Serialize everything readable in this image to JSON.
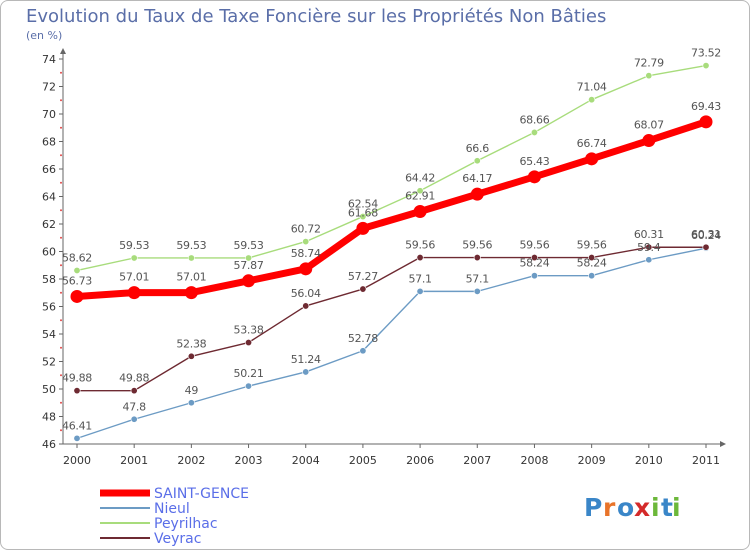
{
  "chart_data": {
    "type": "line",
    "title": "Evolution du Taux de Taxe Foncière sur les Propriétés Non Bâties",
    "subtitle": "(en %)",
    "categories": [
      "2000",
      "2001",
      "2002",
      "2003",
      "2004",
      "2005",
      "2006",
      "2007",
      "2008",
      "2009",
      "2010",
      "2011"
    ],
    "ylim": [
      46,
      74
    ],
    "yticks": [
      46,
      48,
      50,
      52,
      54,
      56,
      58,
      60,
      62,
      64,
      66,
      68,
      70,
      72,
      74
    ],
    "grid": false,
    "legend_position": "bottom-left",
    "series": [
      {
        "name": "SAINT-GENCE",
        "color": "#ff0000",
        "values": [
          56.73,
          57.01,
          57.01,
          57.87,
          58.74,
          61.68,
          62.91,
          64.17,
          65.43,
          66.74,
          68.07,
          69.43
        ],
        "labels": [
          "56.73",
          "57.01",
          "57.01",
          "57.87",
          "58.74",
          "61.68",
          "62.91",
          "64.17",
          "65.43",
          "66.74",
          "68.07",
          "69.43"
        ]
      },
      {
        "name": "Nieul",
        "color": "#6c9bc4",
        "values": [
          46.41,
          47.8,
          49,
          50.21,
          51.24,
          52.78,
          57.1,
          57.1,
          58.24,
          58.24,
          59.4,
          60.24
        ],
        "labels": [
          "46.41",
          "47.8",
          "49",
          "50.21",
          "51.24",
          "52.78",
          "57.1",
          "57.1",
          "58.24",
          "58.24",
          "59.4",
          "60.24"
        ]
      },
      {
        "name": "Peyrilhac",
        "color": "#a8dc7c",
        "values": [
          58.62,
          59.53,
          59.53,
          59.53,
          60.72,
          62.54,
          64.42,
          66.6,
          68.66,
          71.04,
          72.79,
          73.52
        ],
        "labels": [
          "58.62",
          "59.53",
          "59.53",
          "59.53",
          "60.72",
          "62.54",
          "64.42",
          "66.6",
          "68.66",
          "71.04",
          "72.79",
          "73.52"
        ]
      },
      {
        "name": "Veyrac",
        "color": "#6e2a32",
        "values": [
          49.88,
          49.88,
          52.38,
          53.38,
          56.04,
          57.27,
          59.56,
          59.56,
          59.56,
          59.56,
          60.31,
          60.31
        ],
        "labels": [
          "49.88",
          "49.88",
          "52.38",
          "53.38",
          "56.04",
          "57.27",
          "59.56",
          "59.56",
          "59.56",
          "59.56",
          "60.31",
          "60.31"
        ]
      }
    ]
  },
  "branding": {
    "logo_text": "Proxiti",
    "letters": [
      "P",
      "r",
      "o",
      "x",
      "i",
      "t",
      "i"
    ],
    "letter_colors": [
      "#3a86c8",
      "#e8742a",
      "#3a86c8",
      "#d42a2a",
      "#6cb83a",
      "#3a86c8",
      "#6cb83a"
    ]
  }
}
